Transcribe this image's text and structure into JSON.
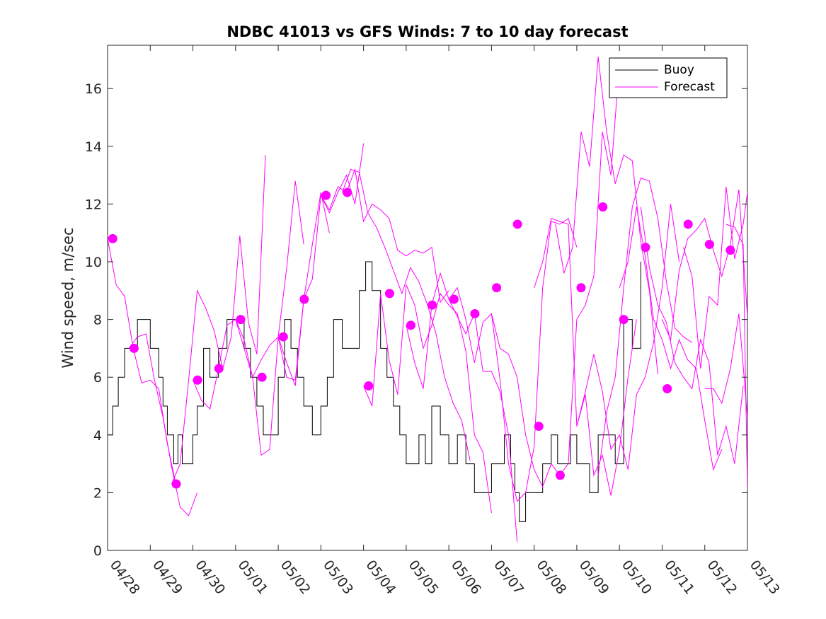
{
  "chart_data": {
    "type": "line",
    "title": "NDBC 41013 vs GFS Winds: 7 to 10 day forecast",
    "xlabel": "",
    "ylabel": "Wind speed, m/sec",
    "xlim": [
      "04/28",
      "05/13"
    ],
    "ylim": [
      0,
      17.5
    ],
    "x_tick_labels": [
      "04/28",
      "04/29",
      "04/30",
      "05/01",
      "05/02",
      "05/03",
      "05/04",
      "05/05",
      "05/06",
      "05/07",
      "05/08",
      "05/09",
      "05/10",
      "05/11",
      "05/12",
      "05/13"
    ],
    "y_ticks": [
      0,
      2,
      4,
      6,
      8,
      10,
      12,
      14,
      16
    ],
    "grid": false,
    "legend": {
      "position": "top-right",
      "entries": [
        "Buoy",
        "Forecast"
      ]
    },
    "colors": {
      "buoy": "#000000",
      "forecast": "#ff00ff"
    },
    "series": [
      {
        "name": "Buoy",
        "style": "line",
        "x_days": [
          0.0,
          0.12,
          0.25,
          0.4,
          0.55,
          0.7,
          0.85,
          1.0,
          1.1,
          1.2,
          1.3,
          1.4,
          1.55,
          1.65,
          1.75,
          1.85,
          2.0,
          2.1,
          2.25,
          2.4,
          2.6,
          2.8,
          3.0,
          3.2,
          3.35,
          3.5,
          3.65,
          3.8,
          4.0,
          4.15,
          4.3,
          4.45,
          4.6,
          4.8,
          5.0,
          5.15,
          5.3,
          5.5,
          5.7,
          5.9,
          6.05,
          6.2,
          6.4,
          6.55,
          6.7,
          6.85,
          7.0,
          7.15,
          7.3,
          7.45,
          7.6,
          7.8,
          8.0,
          8.2,
          8.4,
          8.6,
          8.8,
          9.0,
          9.15,
          9.3,
          9.45,
          9.55,
          9.65,
          9.8,
          10.0,
          10.2,
          10.4,
          10.55,
          10.7,
          10.85,
          11.0,
          11.15,
          11.3,
          11.5,
          11.7,
          11.9,
          12.1,
          12.3,
          12.5
        ],
        "y": [
          4,
          5,
          6,
          7,
          7,
          8,
          8,
          7,
          7,
          6,
          5,
          4,
          3,
          4,
          3,
          3,
          4,
          5,
          7,
          6,
          7,
          8,
          8,
          7,
          6,
          5,
          4,
          4,
          6,
          8,
          7,
          6,
          5,
          4,
          5,
          6,
          8,
          7,
          7,
          9,
          10,
          9,
          7,
          6,
          5,
          4,
          3,
          3,
          4,
          3,
          5,
          4,
          3,
          4,
          3,
          2,
          2,
          3,
          3,
          4,
          3,
          2,
          1,
          2,
          2,
          3,
          4,
          3,
          3,
          4,
          3,
          3,
          2,
          4,
          4,
          3,
          8,
          7,
          10
        ]
      },
      {
        "name": "Forecast",
        "style": "line",
        "x_days": [
          0.0,
          0.2,
          0.4,
          0.6,
          0.8,
          1.0,
          1.2,
          1.4,
          1.6
        ],
        "y": [
          10.8,
          9.2,
          8.8,
          7.0,
          5.8,
          5.9,
          5.6,
          3.7,
          2.3
        ]
      },
      {
        "name": "Forecast",
        "style": "line",
        "x_days": [
          0.5,
          0.7,
          0.9,
          1.1,
          1.3,
          1.5,
          1.7,
          1.9,
          2.1
        ],
        "y": [
          7.0,
          7.4,
          7.5,
          5.9,
          4.6,
          2.9,
          1.5,
          1.2,
          2.0
        ]
      },
      {
        "name": "Forecast",
        "style": "line",
        "x_days": [
          1.5,
          1.7,
          1.9,
          2.1,
          2.3,
          2.5,
          2.7,
          2.9,
          3.1,
          3.3,
          3.5,
          3.7
        ],
        "y": [
          2.3,
          3.0,
          5.9,
          9.0,
          8.4,
          7.6,
          6.3,
          7.4,
          10.9,
          7.9,
          6.8,
          13.7
        ]
      },
      {
        "name": "Forecast",
        "style": "line",
        "x_days": [
          2.0,
          2.2,
          2.4,
          2.6,
          2.8,
          3.0,
          3.2,
          3.4,
          3.6,
          3.8,
          4.0,
          4.2,
          4.4,
          4.6
        ],
        "y": [
          5.9,
          5.2,
          4.9,
          6.3,
          7.8,
          8.0,
          7.3,
          6.0,
          6.6,
          7.1,
          7.4,
          9.8,
          12.8,
          10.6
        ]
      },
      {
        "name": "Forecast",
        "style": "line",
        "x_days": [
          3.0,
          3.2,
          3.4,
          3.6,
          3.8,
          4.0,
          4.2,
          4.4,
          4.6,
          4.8,
          5.0,
          5.2
        ],
        "y": [
          8.0,
          7.0,
          6.0,
          3.3,
          3.5,
          7.4,
          6.0,
          5.9,
          8.7,
          10.6,
          12.4,
          11.0
        ]
      },
      {
        "name": "Forecast",
        "style": "line",
        "x_days": [
          4.0,
          4.2,
          4.4,
          4.6,
          4.8,
          5.0,
          5.2,
          5.4,
          5.6,
          5.8,
          6.0
        ],
        "y": [
          7.4,
          6.5,
          5.7,
          8.7,
          9.4,
          12.3,
          11.7,
          12.4,
          13.0,
          12.0,
          14.1
        ]
      },
      {
        "name": "Forecast",
        "style": "line",
        "x_days": [
          5.0,
          5.2,
          5.4,
          5.6,
          5.8,
          6.0,
          6.2,
          6.4,
          6.6,
          6.8,
          7.0,
          7.2,
          7.4,
          7.6,
          7.8,
          8.0
        ],
        "y": [
          12.3,
          11.8,
          12.6,
          12.4,
          13.2,
          11.4,
          12.0,
          11.8,
          11.5,
          10.4,
          10.2,
          10.4,
          10.3,
          10.5,
          8.6,
          9.0
        ]
      },
      {
        "name": "Forecast",
        "style": "line",
        "x_days": [
          5.5,
          5.7,
          5.9,
          6.1,
          6.3,
          6.5,
          6.7,
          6.9,
          7.1,
          7.3,
          7.5,
          7.7,
          7.9,
          8.1,
          8.3,
          8.5
        ],
        "y": [
          12.4,
          13.2,
          13.1,
          11.7,
          11.2,
          10.5,
          9.7,
          8.9,
          9.8,
          9.3,
          8.5,
          7.5,
          6.0,
          5.1,
          4.5,
          3.1
        ]
      },
      {
        "name": "Forecast",
        "style": "line",
        "x_days": [
          6.0,
          6.2,
          6.4,
          6.6,
          6.8,
          7.0,
          7.2,
          7.4,
          7.6,
          7.8,
          8.0,
          8.2,
          8.4,
          8.6,
          8.8,
          9.0
        ],
        "y": [
          5.7,
          5.0,
          8.9,
          6.6,
          5.4,
          9.2,
          8.5,
          7.0,
          7.8,
          8.9,
          8.5,
          8.2,
          6.9,
          4.0,
          3.4,
          1.3
        ]
      },
      {
        "name": "Forecast",
        "style": "line",
        "x_days": [
          7.0,
          7.2,
          7.4,
          7.6,
          7.8,
          8.0,
          8.2,
          8.4,
          8.6,
          8.8,
          9.0,
          9.2,
          9.4,
          9.6
        ],
        "y": [
          7.8,
          6.5,
          5.6,
          8.5,
          9.6,
          8.7,
          8.1,
          7.5,
          8.2,
          6.2,
          6.2,
          5.5,
          4.0,
          0.3
        ]
      },
      {
        "name": "Forecast",
        "style": "line",
        "x_days": [
          8.0,
          8.2,
          8.4,
          8.6,
          8.8,
          9.0,
          9.2,
          9.4,
          9.6,
          9.8,
          10.0,
          10.2,
          10.4,
          10.6,
          10.8,
          11.0
        ],
        "y": [
          8.7,
          9.1,
          8.0,
          6.5,
          7.9,
          8.2,
          5.9,
          3.0,
          1.7,
          2.0,
          3.6,
          9.1,
          11.4,
          11.3,
          11.5,
          10.5
        ]
      },
      {
        "name": "Forecast",
        "style": "line",
        "x_days": [
          9.0,
          9.2,
          9.4,
          9.6,
          9.8,
          10.0,
          10.2,
          10.4,
          10.6,
          10.8,
          11.0,
          11.2,
          11.4,
          11.6,
          11.8,
          12.0
        ],
        "y": [
          8.2,
          7.0,
          6.8,
          6.0,
          4.0,
          2.8,
          2.2,
          3.0,
          2.6,
          3.0,
          8.0,
          8.5,
          9.5,
          14.5,
          13.0,
          16.9
        ]
      },
      {
        "name": "Forecast",
        "style": "line",
        "x_days": [
          10.0,
          10.2,
          10.4,
          10.6,
          10.8,
          11.0,
          11.2,
          11.4,
          11.6,
          11.8,
          12.0,
          12.2,
          12.4
        ],
        "y": [
          9.1,
          10.0,
          11.5,
          11.4,
          11.3,
          4.3,
          5.4,
          2.6,
          3.3,
          1.9,
          3.5,
          6.0,
          8.0
        ]
      },
      {
        "name": "Forecast",
        "style": "line",
        "x_days": [
          10.5,
          10.7,
          10.9,
          11.1,
          11.3,
          11.5,
          11.7,
          11.9,
          12.1,
          12.3,
          12.5,
          12.7,
          12.9
        ],
        "y": [
          11.3,
          9.6,
          10.5,
          14.5,
          13.3,
          17.1,
          14.5,
          12.7,
          13.7,
          13.5,
          10.7,
          9.0,
          6.1
        ]
      },
      {
        "name": "Forecast",
        "style": "line",
        "x_days": [
          11.0,
          11.2,
          11.4,
          11.6,
          11.8,
          12.0,
          12.2,
          12.4,
          12.6,
          12.8,
          13.0,
          13.2,
          13.4
        ],
        "y": [
          4.3,
          5.5,
          6.8,
          5.5,
          3.5,
          4.0,
          2.8,
          5.4,
          6.0,
          7.2,
          9.1,
          12.0,
          10.0
        ]
      },
      {
        "name": "Forecast",
        "style": "line",
        "x_days": [
          11.5,
          11.7,
          11.9,
          12.1,
          12.3,
          12.5,
          12.7,
          12.9,
          13.1,
          13.3,
          13.5,
          13.7
        ],
        "y": [
          2.6,
          4.8,
          6.0,
          9.1,
          11.9,
          12.9,
          12.8,
          11.5,
          9.3,
          7.7,
          7.4,
          7.2
        ]
      },
      {
        "name": "Forecast",
        "style": "line",
        "x_days": [
          12.0,
          12.2,
          12.4,
          12.6,
          12.8,
          13.0,
          13.2,
          13.4,
          13.6,
          13.8,
          14.0,
          14.2,
          14.4
        ],
        "y": [
          9.1,
          10.0,
          11.9,
          10.2,
          8.0,
          7.3,
          6.3,
          7.3,
          6.6,
          6.3,
          4.5,
          2.8,
          3.5
        ]
      },
      {
        "name": "Forecast",
        "style": "line",
        "x_days": [
          12.5,
          12.7,
          12.9,
          13.1,
          13.3,
          13.5,
          13.7,
          13.9,
          14.1,
          14.3,
          14.5,
          14.7,
          14.9
        ],
        "y": [
          11.9,
          9.8,
          8.5,
          7.9,
          6.5,
          6.0,
          5.6,
          7.3,
          6.5,
          3.3,
          4.3,
          3.0,
          5.7
        ]
      },
      {
        "name": "Forecast",
        "style": "line",
        "x_days": [
          13.0,
          13.2,
          13.4,
          13.6,
          13.8,
          14.0,
          14.2,
          14.4,
          14.6,
          14.8,
          15.0
        ],
        "y": [
          8.0,
          7.3,
          9.7,
          10.8,
          11.1,
          11.5,
          10.4,
          9.5,
          10.6,
          12.5,
          8.1
        ]
      },
      {
        "name": "Forecast",
        "style": "line",
        "x_days": [
          13.5,
          13.7,
          13.9,
          14.1,
          14.3,
          14.5,
          14.7,
          14.9,
          15.0
        ],
        "y": [
          10.5,
          9.5,
          6.3,
          8.8,
          8.5,
          12.6,
          10.1,
          11.3,
          12.4
        ]
      },
      {
        "name": "Forecast",
        "style": "line",
        "x_days": [
          14.0,
          14.2,
          14.4,
          14.6,
          14.8,
          15.0
        ],
        "y": [
          5.6,
          5.6,
          5.1,
          6.3,
          8.2,
          4.6
        ]
      },
      {
        "name": "Forecast",
        "style": "line",
        "x_days": [
          14.5,
          14.7,
          14.9,
          15.0
        ],
        "y": [
          11.3,
          11.2,
          10.6,
          2.1
        ]
      },
      {
        "name": "Forecast",
        "style": "markers",
        "x_days": [
          0.12,
          0.62,
          1.61,
          2.11,
          2.61,
          3.12,
          3.62,
          4.12,
          4.61,
          5.12,
          5.62,
          6.12,
          6.61,
          7.11,
          7.61,
          8.12,
          8.61,
          9.12,
          9.61,
          10.11,
          10.61,
          11.1,
          11.61,
          12.1,
          12.61,
          13.12,
          13.61,
          14.11,
          14.6
        ],
        "y": [
          10.8,
          7.0,
          2.3,
          5.9,
          6.3,
          8.0,
          6.0,
          7.4,
          8.7,
          12.3,
          12.4,
          5.7,
          8.9,
          7.8,
          8.5,
          8.7,
          8.2,
          9.1,
          11.3,
          4.3,
          2.6,
          9.1,
          11.9,
          8.0,
          10.5,
          5.6,
          11.3,
          10.6,
          10.4
        ]
      }
    ]
  }
}
